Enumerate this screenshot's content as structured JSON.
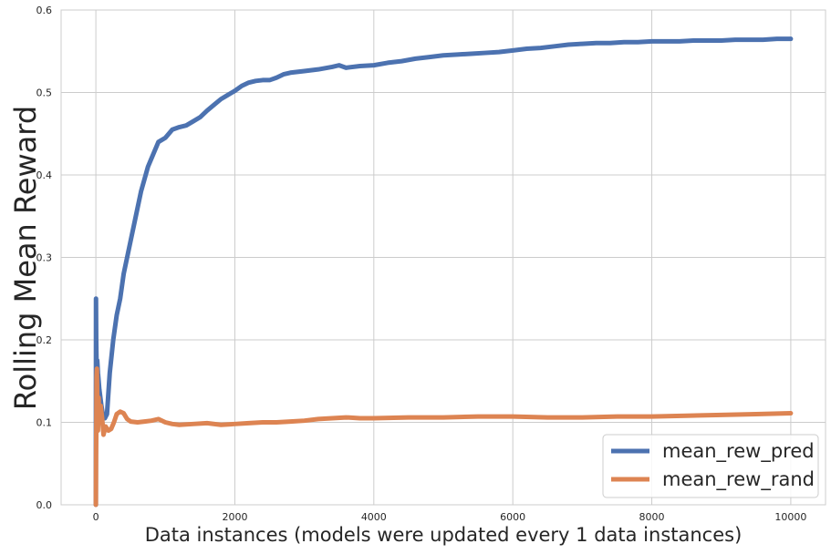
{
  "chart_data": {
    "type": "line",
    "title": "",
    "xlabel": "Data instances (models were updated every 1 data instances)",
    "ylabel": "Rolling Mean Reward",
    "xlim": [
      -500,
      10500
    ],
    "ylim": [
      0.0,
      0.6
    ],
    "x_ticks": [
      0,
      2000,
      4000,
      6000,
      8000,
      10000
    ],
    "y_ticks": [
      0.0,
      0.1,
      0.2,
      0.3,
      0.4,
      0.5,
      0.6
    ],
    "x_tick_labels": [
      "0",
      "2000",
      "4000",
      "6000",
      "8000",
      "10000"
    ],
    "y_tick_labels": [
      "0.0",
      "0.1",
      "0.2",
      "0.3",
      "0.4",
      "0.5",
      "0.6"
    ],
    "grid": true,
    "legend_position": "lower-right",
    "series": [
      {
        "name": "mean_rew_pred",
        "color": "#4c72b0",
        "points": [
          [
            0,
            0.0
          ],
          [
            2,
            0.25
          ],
          [
            5,
            0.2
          ],
          [
            10,
            0.17
          ],
          [
            20,
            0.175
          ],
          [
            30,
            0.16
          ],
          [
            50,
            0.14
          ],
          [
            80,
            0.12
          ],
          [
            100,
            0.11
          ],
          [
            130,
            0.105
          ],
          [
            160,
            0.11
          ],
          [
            200,
            0.16
          ],
          [
            250,
            0.2
          ],
          [
            300,
            0.23
          ],
          [
            350,
            0.25
          ],
          [
            400,
            0.28
          ],
          [
            450,
            0.3
          ],
          [
            500,
            0.32
          ],
          [
            550,
            0.34
          ],
          [
            600,
            0.36
          ],
          [
            650,
            0.38
          ],
          [
            700,
            0.395
          ],
          [
            750,
            0.41
          ],
          [
            800,
            0.42
          ],
          [
            900,
            0.44
          ],
          [
            1000,
            0.445
          ],
          [
            1100,
            0.455
          ],
          [
            1200,
            0.458
          ],
          [
            1300,
            0.46
          ],
          [
            1400,
            0.465
          ],
          [
            1500,
            0.47
          ],
          [
            1600,
            0.478
          ],
          [
            1700,
            0.485
          ],
          [
            1800,
            0.492
          ],
          [
            1900,
            0.497
          ],
          [
            2000,
            0.502
          ],
          [
            2100,
            0.508
          ],
          [
            2200,
            0.512
          ],
          [
            2300,
            0.514
          ],
          [
            2400,
            0.515
          ],
          [
            2500,
            0.515
          ],
          [
            2600,
            0.518
          ],
          [
            2700,
            0.522
          ],
          [
            2800,
            0.524
          ],
          [
            3000,
            0.526
          ],
          [
            3200,
            0.528
          ],
          [
            3400,
            0.531
          ],
          [
            3500,
            0.533
          ],
          [
            3600,
            0.53
          ],
          [
            3800,
            0.532
          ],
          [
            4000,
            0.533
          ],
          [
            4200,
            0.536
          ],
          [
            4400,
            0.538
          ],
          [
            4600,
            0.541
          ],
          [
            4800,
            0.543
          ],
          [
            5000,
            0.545
          ],
          [
            5200,
            0.546
          ],
          [
            5400,
            0.547
          ],
          [
            5600,
            0.548
          ],
          [
            5800,
            0.549
          ],
          [
            6000,
            0.551
          ],
          [
            6200,
            0.553
          ],
          [
            6400,
            0.554
          ],
          [
            6600,
            0.556
          ],
          [
            6800,
            0.558
          ],
          [
            7000,
            0.559
          ],
          [
            7200,
            0.56
          ],
          [
            7400,
            0.56
          ],
          [
            7600,
            0.561
          ],
          [
            7800,
            0.561
          ],
          [
            8000,
            0.562
          ],
          [
            8200,
            0.562
          ],
          [
            8400,
            0.562
          ],
          [
            8600,
            0.563
          ],
          [
            8800,
            0.563
          ],
          [
            9000,
            0.563
          ],
          [
            9200,
            0.564
          ],
          [
            9400,
            0.564
          ],
          [
            9600,
            0.564
          ],
          [
            9800,
            0.565
          ],
          [
            10000,
            0.565
          ]
        ]
      },
      {
        "name": "mean_rew_rand",
        "color": "#dd8452",
        "points": [
          [
            0,
            0.0
          ],
          [
            3,
            0.06
          ],
          [
            6,
            0.09
          ],
          [
            10,
            0.155
          ],
          [
            15,
            0.165
          ],
          [
            20,
            0.13
          ],
          [
            30,
            0.09
          ],
          [
            40,
            0.13
          ],
          [
            50,
            0.1
          ],
          [
            70,
            0.12
          ],
          [
            90,
            0.105
          ],
          [
            110,
            0.085
          ],
          [
            140,
            0.095
          ],
          [
            180,
            0.09
          ],
          [
            220,
            0.092
          ],
          [
            260,
            0.1
          ],
          [
            300,
            0.11
          ],
          [
            350,
            0.113
          ],
          [
            400,
            0.111
          ],
          [
            450,
            0.104
          ],
          [
            500,
            0.101
          ],
          [
            600,
            0.1
          ],
          [
            700,
            0.101
          ],
          [
            800,
            0.102
          ],
          [
            900,
            0.104
          ],
          [
            1000,
            0.1
          ],
          [
            1100,
            0.098
          ],
          [
            1200,
            0.097
          ],
          [
            1400,
            0.098
          ],
          [
            1600,
            0.099
          ],
          [
            1800,
            0.097
          ],
          [
            2000,
            0.098
          ],
          [
            2200,
            0.099
          ],
          [
            2400,
            0.1
          ],
          [
            2600,
            0.1
          ],
          [
            2800,
            0.101
          ],
          [
            3000,
            0.102
          ],
          [
            3200,
            0.104
          ],
          [
            3400,
            0.105
          ],
          [
            3600,
            0.106
          ],
          [
            3800,
            0.105
          ],
          [
            4000,
            0.105
          ],
          [
            4500,
            0.106
          ],
          [
            5000,
            0.106
          ],
          [
            5500,
            0.107
          ],
          [
            6000,
            0.107
          ],
          [
            6500,
            0.106
          ],
          [
            7000,
            0.106
          ],
          [
            7500,
            0.107
          ],
          [
            8000,
            0.107
          ],
          [
            8500,
            0.108
          ],
          [
            9000,
            0.109
          ],
          [
            9500,
            0.11
          ],
          [
            10000,
            0.111
          ]
        ]
      }
    ]
  }
}
